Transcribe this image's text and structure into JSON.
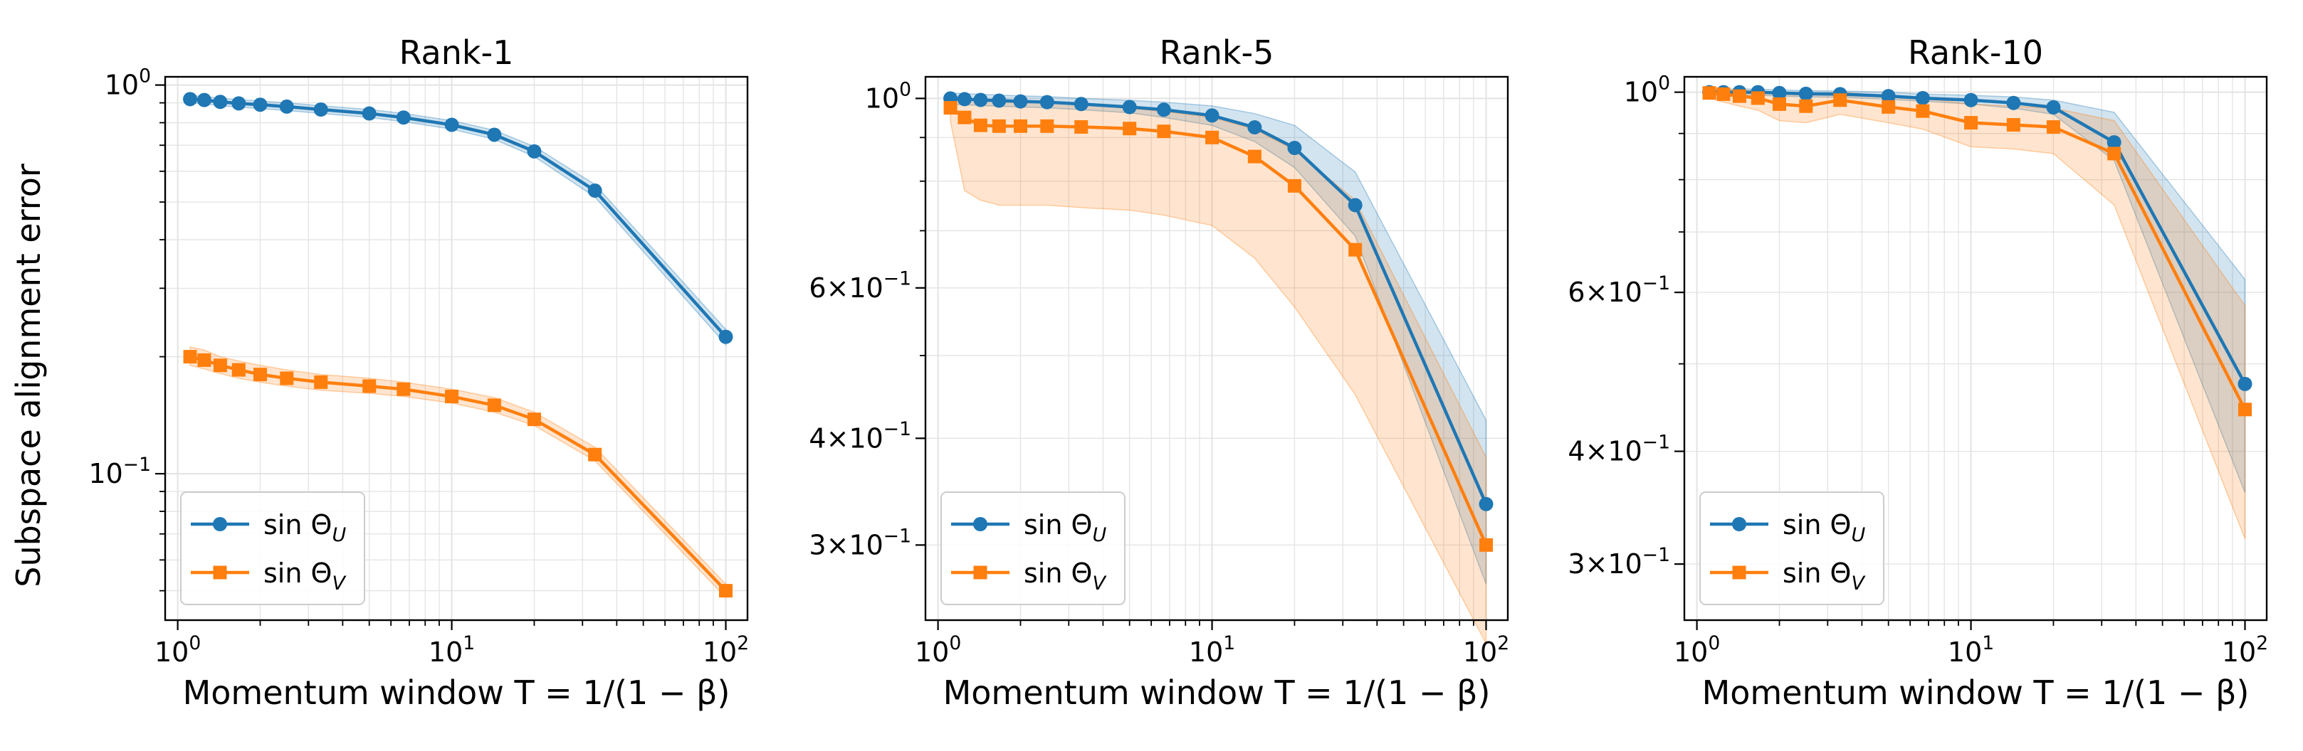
{
  "figure": {
    "ylabel": "Subspace alignment error",
    "xlabel": "Momentum window T = 1/(1 − β)"
  },
  "chart_data": [
    {
      "type": "line",
      "title": "Rank-1",
      "xscale": "log",
      "yscale": "log",
      "xlim": [
        0.9,
        120
      ],
      "ylim": [
        0.042,
        1.05
      ],
      "x": [
        1.11,
        1.25,
        1.43,
        1.67,
        2.0,
        2.5,
        3.33,
        5.0,
        6.67,
        10,
        14.3,
        20,
        33.3,
        100
      ],
      "xticks": [
        1,
        10,
        100
      ],
      "xtick_labels": [
        "10^0",
        "10^1",
        "10^2"
      ],
      "yticks": [
        0.1,
        1
      ],
      "ytick_labels": [
        "10^-1",
        "10^0"
      ],
      "grid": true,
      "legend_position": "lower-left",
      "series": [
        {
          "name": "sin Θ_U",
          "color": "#1f77b4",
          "marker": "circle",
          "values": [
            0.92,
            0.915,
            0.905,
            0.897,
            0.89,
            0.88,
            0.865,
            0.845,
            0.825,
            0.79,
            0.745,
            0.675,
            0.535,
            0.225
          ],
          "lower": [
            0.9,
            0.895,
            0.885,
            0.877,
            0.87,
            0.86,
            0.845,
            0.825,
            0.805,
            0.77,
            0.725,
            0.655,
            0.515,
            0.215
          ],
          "upper": [
            0.94,
            0.935,
            0.925,
            0.917,
            0.91,
            0.9,
            0.885,
            0.865,
            0.845,
            0.81,
            0.765,
            0.695,
            0.555,
            0.235
          ]
        },
        {
          "name": "sin Θ_V",
          "color": "#ff7f0e",
          "marker": "square",
          "values": [
            0.2,
            0.196,
            0.19,
            0.185,
            0.18,
            0.176,
            0.172,
            0.168,
            0.165,
            0.158,
            0.15,
            0.138,
            0.112,
            0.05
          ],
          "lower": [
            0.19,
            0.186,
            0.181,
            0.176,
            0.172,
            0.168,
            0.164,
            0.161,
            0.158,
            0.152,
            0.144,
            0.133,
            0.108,
            0.048
          ],
          "upper": [
            0.212,
            0.208,
            0.2,
            0.195,
            0.19,
            0.185,
            0.18,
            0.176,
            0.172,
            0.165,
            0.157,
            0.144,
            0.117,
            0.052
          ]
        }
      ]
    },
    {
      "type": "line",
      "title": "Rank-5",
      "xscale": "log",
      "yscale": "log",
      "xlim": [
        0.9,
        120
      ],
      "ylim": [
        0.245,
        1.06
      ],
      "x": [
        1.11,
        1.25,
        1.43,
        1.67,
        2.0,
        2.5,
        3.33,
        5.0,
        6.67,
        10,
        14.3,
        20,
        33.3,
        100
      ],
      "xticks": [
        1,
        10,
        100
      ],
      "xtick_labels": [
        "10^0",
        "10^1",
        "10^2"
      ],
      "yticks": [
        0.3,
        0.4,
        0.6,
        1
      ],
      "ytick_labels": [
        "3×10^-1",
        "4×10^-1",
        "6×10^-1",
        "10^0"
      ],
      "yminor": [
        0.5,
        0.7,
        0.8,
        0.9
      ],
      "grid": true,
      "legend_position": "lower-left",
      "series": [
        {
          "name": "sin Θ_U",
          "color": "#1f77b4",
          "marker": "circle",
          "values": [
            1.0,
            0.998,
            0.996,
            0.994,
            0.992,
            0.99,
            0.985,
            0.977,
            0.97,
            0.955,
            0.925,
            0.875,
            0.75,
            0.335
          ],
          "lower": [
            0.985,
            0.983,
            0.981,
            0.979,
            0.977,
            0.975,
            0.97,
            0.962,
            0.95,
            0.93,
            0.89,
            0.83,
            0.69,
            0.27
          ],
          "upper": [
            1.015,
            1.013,
            1.011,
            1.009,
            1.007,
            1.005,
            1.0,
            0.995,
            0.99,
            0.98,
            0.96,
            0.93,
            0.82,
            0.42
          ]
        },
        {
          "name": "sin Θ_V",
          "color": "#ff7f0e",
          "marker": "square",
          "values": [
            0.975,
            0.95,
            0.93,
            0.928,
            0.928,
            0.928,
            0.926,
            0.922,
            0.915,
            0.9,
            0.855,
            0.79,
            0.665,
            0.3
          ],
          "lower": [
            0.94,
            0.78,
            0.76,
            0.75,
            0.75,
            0.75,
            0.745,
            0.74,
            0.73,
            0.71,
            0.65,
            0.57,
            0.45,
            0.23
          ],
          "upper": [
            1.01,
            1.0,
            0.995,
            0.99,
            0.99,
            0.99,
            0.985,
            0.975,
            0.965,
            0.95,
            0.92,
            0.87,
            0.76,
            0.38
          ]
        }
      ]
    },
    {
      "type": "line",
      "title": "Rank-10",
      "xscale": "log",
      "yscale": "log",
      "xlim": [
        0.9,
        120
      ],
      "ylim": [
        0.26,
        1.04
      ],
      "x": [
        1.11,
        1.25,
        1.43,
        1.67,
        2.0,
        2.5,
        3.33,
        5.0,
        6.67,
        10,
        14.3,
        20,
        33.3,
        100
      ],
      "xticks": [
        1,
        10,
        100
      ],
      "xtick_labels": [
        "10^0",
        "10^1",
        "10^2"
      ],
      "yticks": [
        0.3,
        0.4,
        0.6,
        1
      ],
      "ytick_labels": [
        "3×10^-1",
        "4×10^-1",
        "6×10^-1",
        "10^0"
      ],
      "yminor": [
        0.5,
        0.7,
        0.8,
        0.9
      ],
      "grid": true,
      "legend_position": "lower-left",
      "series": [
        {
          "name": "sin Θ_U",
          "color": "#1f77b4",
          "marker": "circle",
          "values": [
            1.0,
            1.0,
            1.0,
            1.0,
            0.998,
            0.996,
            0.995,
            0.99,
            0.985,
            0.98,
            0.973,
            0.962,
            0.88,
            0.475
          ],
          "lower": [
            0.992,
            0.992,
            0.992,
            0.992,
            0.99,
            0.988,
            0.987,
            0.982,
            0.977,
            0.97,
            0.96,
            0.945,
            0.84,
            0.36
          ],
          "upper": [
            1.008,
            1.008,
            1.008,
            1.008,
            1.006,
            1.004,
            1.003,
            1.0,
            0.995,
            0.992,
            0.988,
            0.98,
            0.95,
            0.62
          ]
        },
        {
          "name": "sin Θ_V",
          "color": "#ff7f0e",
          "marker": "square",
          "values": [
            0.998,
            0.995,
            0.99,
            0.985,
            0.97,
            0.965,
            0.98,
            0.963,
            0.953,
            0.925,
            0.92,
            0.915,
            0.855,
            0.445
          ],
          "lower": [
            0.985,
            0.975,
            0.965,
            0.955,
            0.93,
            0.925,
            0.945,
            0.925,
            0.91,
            0.87,
            0.865,
            0.855,
            0.75,
            0.32
          ],
          "upper": [
            1.008,
            1.006,
            1.004,
            1.002,
            0.995,
            0.993,
            1.0,
            0.99,
            0.985,
            0.97,
            0.965,
            0.96,
            0.93,
            0.58
          ]
        }
      ]
    }
  ]
}
